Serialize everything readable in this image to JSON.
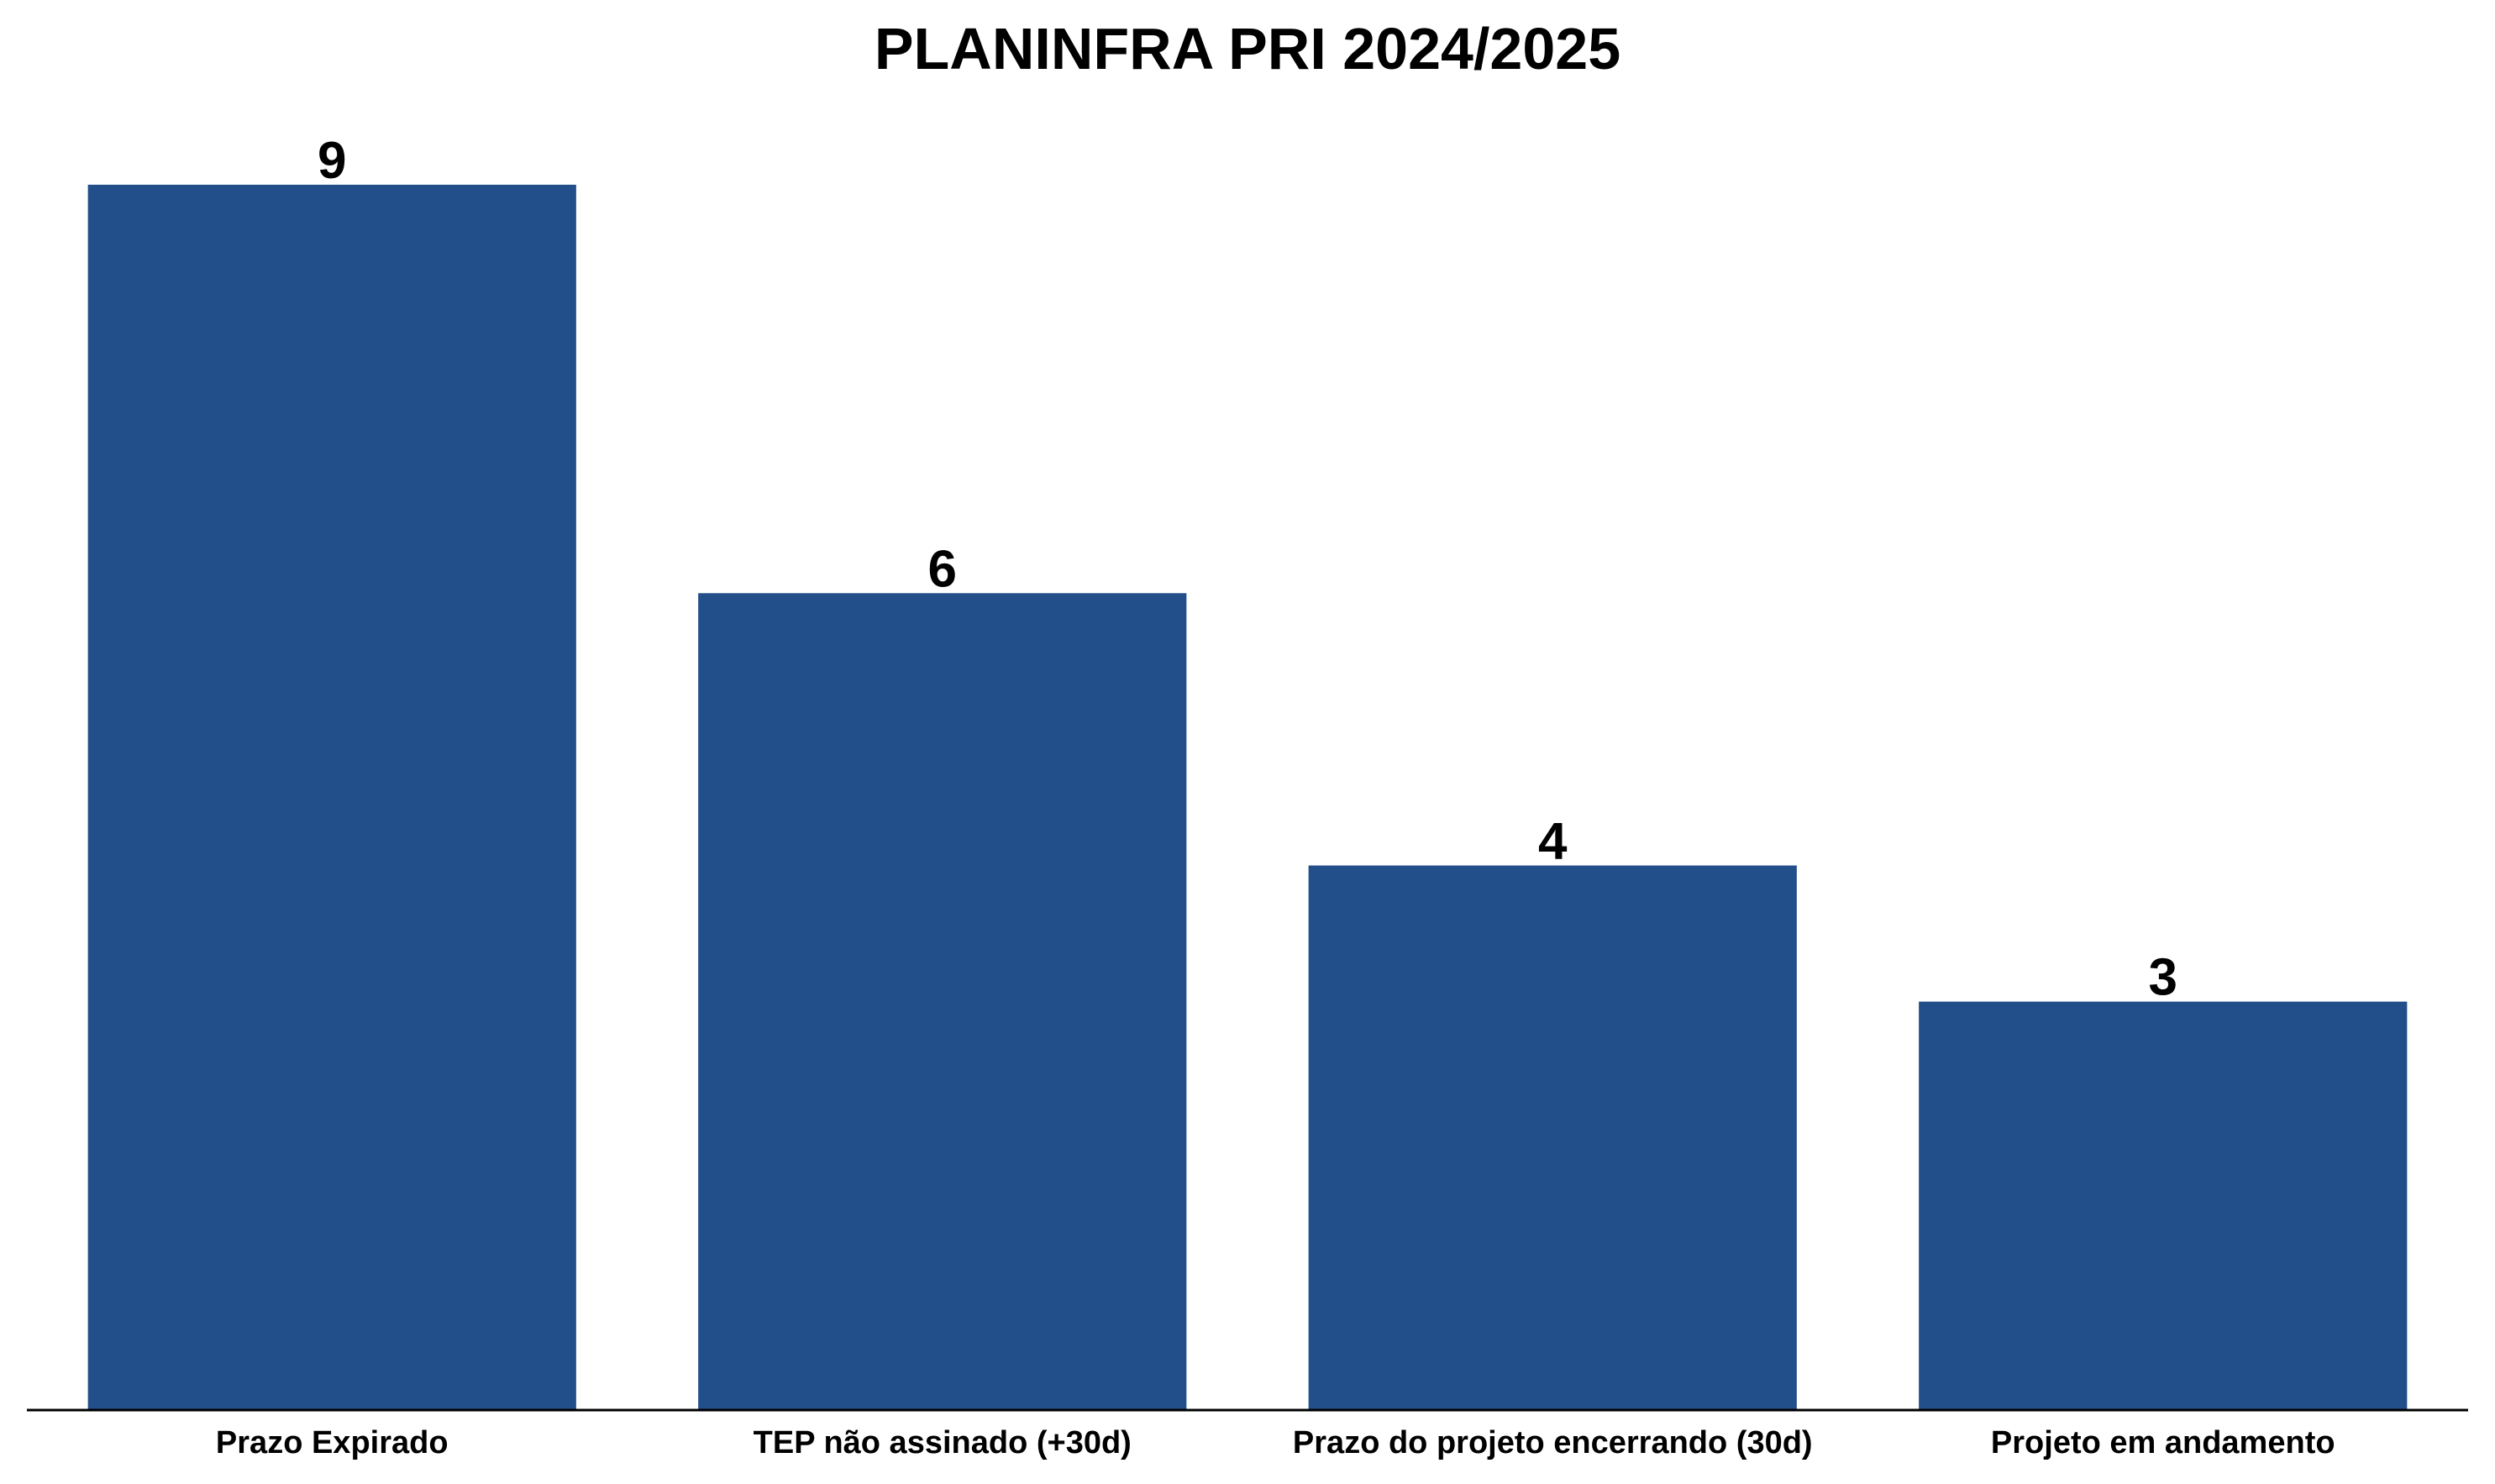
{
  "chart_data": {
    "type": "bar",
    "title": "PLANINFRA PRI 2024/2025",
    "xlabel": "",
    "ylabel": "",
    "categories": [
      "Prazo Expirado",
      "TEP não assinado (+30d)",
      "Prazo do projeto encerrando (30d)",
      "Projeto em andamento"
    ],
    "values": [
      9,
      6,
      4,
      3
    ],
    "data_labels": [
      "9",
      "6",
      "4",
      "3"
    ],
    "ylim": [
      0,
      9.45
    ],
    "grid": false,
    "legend": "none",
    "y_axis_visible": false,
    "colors": {
      "bar": "#224e89",
      "axis": "#000000",
      "text": "#000000",
      "background": "#ffffff"
    }
  }
}
